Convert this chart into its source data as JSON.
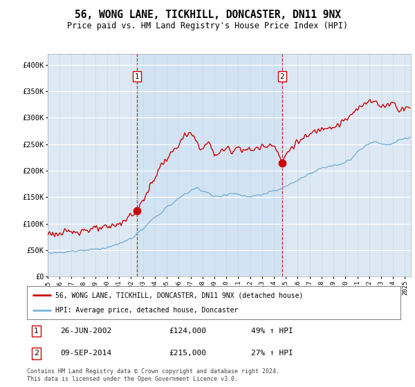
{
  "title": "56, WONG LANE, TICKHILL, DONCASTER, DN11 9NX",
  "subtitle": "Price paid vs. HM Land Registry's House Price Index (HPI)",
  "ylim": [
    0,
    420000
  ],
  "xlim_start": 1995.0,
  "xlim_end": 2025.5,
  "yticks": [
    0,
    50000,
    100000,
    150000,
    200000,
    250000,
    300000,
    350000,
    400000
  ],
  "ytick_labels": [
    "£0",
    "£50K",
    "£100K",
    "£150K",
    "£200K",
    "£250K",
    "£300K",
    "£350K",
    "£400K"
  ],
  "sale1_date": 2002.49,
  "sale1_price": 124000,
  "sale2_date": 2014.69,
  "sale2_price": 215000,
  "red_color": "#cc0000",
  "blue_color": "#7aafd4",
  "bg_color": "#dce9f5",
  "legend_label_red": "56, WONG LANE, TICKHILL, DONCASTER, DN11 9NX (detached house)",
  "legend_label_blue": "HPI: Average price, detached house, Doncaster",
  "footer": "Contains HM Land Registry data © Crown copyright and database right 2024.\nThis data is licensed under the Open Government Licence v3.0."
}
